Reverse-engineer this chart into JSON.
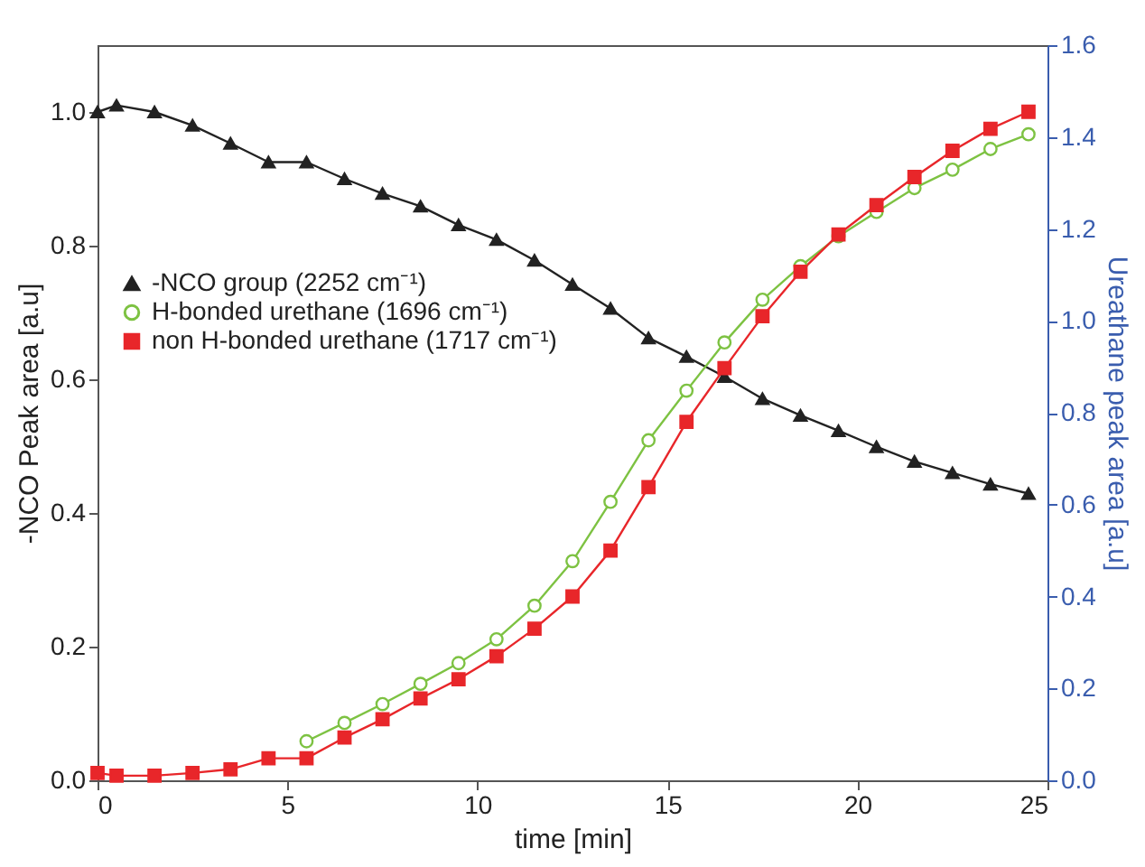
{
  "chart_data": {
    "type": "line",
    "xlabel": "time [min]",
    "ylabel": "-NCO Peak area [a.u]",
    "y2label": "Ureathane peak area [a.u]",
    "x": [
      0,
      0.5,
      1.5,
      2.5,
      3.5,
      4.5,
      5.5,
      6.5,
      7.5,
      8.5,
      9.5,
      10.5,
      11.5,
      12.5,
      13.5,
      14.5,
      15.5,
      16.5,
      17.5,
      18.5,
      19.5,
      20.5,
      21.5,
      22.5,
      23.5,
      24.5
    ],
    "series": [
      {
        "name": "-NCO group (2252 cm⁻¹)",
        "color": "#222222",
        "marker": "triangle",
        "values": [
          1.0,
          1.01,
          1.0,
          0.98,
          0.953,
          0.925,
          0.925,
          0.9,
          0.878,
          0.859,
          0.831,
          0.809,
          0.778,
          0.742,
          0.706,
          0.662,
          0.634,
          0.604,
          0.571,
          0.546,
          0.523,
          0.499,
          0.477,
          0.46,
          0.443,
          0.429
        ]
      },
      {
        "name": "H-bonded urethane (1696 cm⁻¹)",
        "color": "#7dc242",
        "marker": "circle",
        "axis": "y2",
        "values": [
          null,
          null,
          null,
          null,
          null,
          null,
          0.085,
          0.125,
          0.166,
          0.21,
          0.255,
          0.307,
          0.38,
          0.477,
          0.606,
          0.74,
          0.848,
          0.953,
          1.046,
          1.119,
          1.184,
          1.237,
          1.289,
          1.329,
          1.374,
          1.406
        ]
      },
      {
        "name": "non H-bonded urethane (1717 cm⁻¹)",
        "color": "#e8262a",
        "marker": "square",
        "axis": "y2",
        "values": [
          0.016,
          0.01,
          0.01,
          0.016,
          0.024,
          0.048,
          0.048,
          0.093,
          0.133,
          0.178,
          0.22,
          0.27,
          0.33,
          0.4,
          0.5,
          0.638,
          0.78,
          0.897,
          1.01,
          1.107,
          1.188,
          1.252,
          1.313,
          1.37,
          1.418,
          1.455
        ]
      }
    ],
    "xlim": [
      0,
      25
    ],
    "xticks": [
      0,
      5,
      10,
      15,
      20,
      25
    ],
    "ylim": [
      0,
      1.1
    ],
    "yticks": [
      {
        "value": 0,
        "label": "0.0"
      },
      0.2,
      0.4,
      0.6,
      0.8,
      {
        "value": 1,
        "label": "1.0"
      }
    ],
    "y2lim": [
      0,
      1.6
    ],
    "y2ticks": [
      {
        "value": 0,
        "label": "0.0"
      },
      0.2,
      0.4,
      0.6,
      0.8,
      {
        "value": 1,
        "label": "1.0"
      },
      1.2,
      1.4,
      1.6
    ],
    "legend": "top left"
  }
}
